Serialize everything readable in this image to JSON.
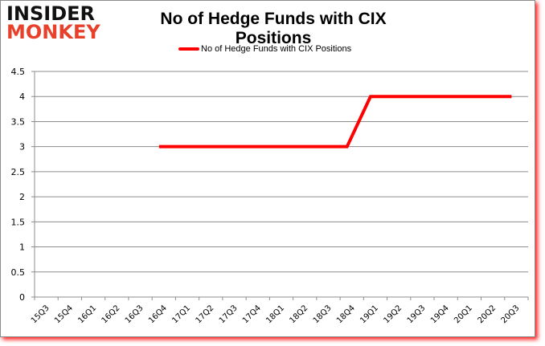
{
  "logo": {
    "line1": "INSIDER",
    "line2": "MONKEY"
  },
  "chart_data": {
    "type": "line",
    "title": "No of Hedge Funds with CIX Positions",
    "xlabel": "",
    "ylabel": "",
    "ylim": [
      0,
      4.5
    ],
    "yticks": [
      0,
      0.5,
      1,
      1.5,
      2,
      2.5,
      3,
      3.5,
      4,
      4.5
    ],
    "grid": true,
    "legend_position": "top",
    "categories": [
      "15Q3",
      "15Q4",
      "16Q1",
      "16Q2",
      "16Q3",
      "16Q4",
      "17Q1",
      "17Q2",
      "17Q3",
      "17Q4",
      "18Q1",
      "18Q2",
      "18Q3",
      "18Q4",
      "19Q1",
      "19Q2",
      "19Q3",
      "19Q4",
      "20Q1",
      "20Q2",
      "20Q3"
    ],
    "series": [
      {
        "name": "No of Hedge Funds with CIX Positions",
        "color": "#ff0000",
        "values": [
          null,
          null,
          null,
          null,
          null,
          3,
          3,
          3,
          3,
          3,
          3,
          3,
          3,
          3,
          4,
          4,
          4,
          4,
          4,
          4,
          4
        ]
      }
    ]
  }
}
